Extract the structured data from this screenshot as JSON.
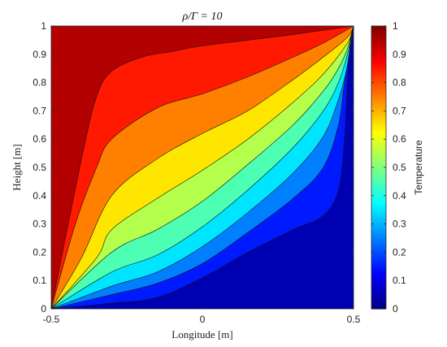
{
  "chart_data": {
    "type": "heatmap",
    "subtype": "filled-contour",
    "title": "ρ/Γ = 10",
    "xlabel": "Longitude [m]",
    "ylabel": "Height [m]",
    "colorbar_label": "Temperature",
    "xlim": [
      -0.5,
      0.5
    ],
    "ylim": [
      0,
      1
    ],
    "clim": [
      0,
      1
    ],
    "x_ticks": [
      -0.5,
      0,
      0.5
    ],
    "x_tick_labels": [
      "-0.5",
      "0",
      "0.5"
    ],
    "y_ticks": [
      0,
      0.1,
      0.2,
      0.3,
      0.4,
      0.5,
      0.6,
      0.7,
      0.8,
      0.9,
      1
    ],
    "y_tick_labels": [
      "0",
      "0.1",
      "0.2",
      "0.3",
      "0.4",
      "0.5",
      "0.6",
      "0.7",
      "0.8",
      "0.9",
      "1"
    ],
    "colorbar_ticks": [
      0,
      0.1,
      0.2,
      0.3,
      0.4,
      0.5,
      0.6,
      0.7,
      0.8,
      0.9,
      1
    ],
    "colorbar_tick_labels": [
      "0",
      "0.1",
      "0.2",
      "0.3",
      "0.4",
      "0.5",
      "0.6",
      "0.7",
      "0.8",
      "0.9",
      "1"
    ],
    "contour_levels": [
      0.1,
      0.2,
      0.3,
      0.4,
      0.5,
      0.6,
      0.7,
      0.8,
      0.9
    ],
    "colormap": "jet",
    "grid": false,
    "legend": "none",
    "boundary_conditions": {
      "left_edge": 1,
      "top_edge": 1,
      "bottom_edge": 0,
      "right_edge": 0
    },
    "contours": [
      {
        "level": 0.1,
        "points": [
          [
            -0.5,
            0
          ],
          [
            -0.3,
            0.02
          ],
          [
            -0.15,
            0.04
          ],
          [
            0,
            0.11
          ],
          [
            0.15,
            0.2
          ],
          [
            0.3,
            0.28
          ],
          [
            0.4,
            0.33
          ],
          [
            0.45,
            0.42
          ],
          [
            0.47,
            0.6
          ],
          [
            0.48,
            0.8
          ],
          [
            0.49,
            0.95
          ],
          [
            0.5,
            1
          ]
        ]
      },
      {
        "level": 0.2,
        "points": [
          [
            -0.5,
            0
          ],
          [
            -0.3,
            0.05
          ],
          [
            -0.15,
            0.09
          ],
          [
            0,
            0.16
          ],
          [
            0.15,
            0.27
          ],
          [
            0.3,
            0.39
          ],
          [
            0.4,
            0.5
          ],
          [
            0.45,
            0.65
          ],
          [
            0.47,
            0.8
          ],
          [
            0.49,
            0.93
          ],
          [
            0.5,
            1
          ]
        ]
      },
      {
        "level": 0.3,
        "points": [
          [
            -0.5,
            0
          ],
          [
            -0.3,
            0.08
          ],
          [
            -0.15,
            0.13
          ],
          [
            0,
            0.22
          ],
          [
            0.15,
            0.34
          ],
          [
            0.3,
            0.48
          ],
          [
            0.4,
            0.61
          ],
          [
            0.45,
            0.74
          ],
          [
            0.48,
            0.86
          ],
          [
            0.5,
            1
          ]
        ]
      },
      {
        "level": 0.4,
        "points": [
          [
            -0.5,
            0
          ],
          [
            -0.3,
            0.13
          ],
          [
            -0.15,
            0.19
          ],
          [
            0,
            0.29
          ],
          [
            0.15,
            0.42
          ],
          [
            0.3,
            0.57
          ],
          [
            0.4,
            0.7
          ],
          [
            0.45,
            0.8
          ],
          [
            0.48,
            0.9
          ],
          [
            0.5,
            1
          ]
        ]
      },
      {
        "level": 0.5,
        "points": [
          [
            -0.5,
            0
          ],
          [
            -0.3,
            0.2
          ],
          [
            -0.15,
            0.28
          ],
          [
            0,
            0.38
          ],
          [
            0.15,
            0.51
          ],
          [
            0.3,
            0.65
          ],
          [
            0.4,
            0.77
          ],
          [
            0.45,
            0.85
          ],
          [
            0.48,
            0.92
          ],
          [
            0.5,
            1
          ]
        ]
      },
      {
        "level": 0.6,
        "points": [
          [
            -0.5,
            0
          ],
          [
            -0.35,
            0.18
          ],
          [
            -0.3,
            0.28
          ],
          [
            -0.15,
            0.39
          ],
          [
            0,
            0.49
          ],
          [
            0.15,
            0.6
          ],
          [
            0.3,
            0.73
          ],
          [
            0.4,
            0.83
          ],
          [
            0.48,
            0.94
          ],
          [
            0.5,
            1
          ]
        ]
      },
      {
        "level": 0.7,
        "points": [
          [
            -0.5,
            0
          ],
          [
            -0.4,
            0.18
          ],
          [
            -0.3,
            0.4
          ],
          [
            -0.15,
            0.53
          ],
          [
            0,
            0.62
          ],
          [
            0.15,
            0.7
          ],
          [
            0.3,
            0.81
          ],
          [
            0.4,
            0.89
          ],
          [
            0.48,
            0.96
          ],
          [
            0.5,
            1
          ]
        ]
      },
      {
        "level": 0.8,
        "points": [
          [
            -0.5,
            0
          ],
          [
            -0.42,
            0.3
          ],
          [
            -0.35,
            0.5
          ],
          [
            -0.3,
            0.6
          ],
          [
            -0.15,
            0.71
          ],
          [
            0,
            0.76
          ],
          [
            0.15,
            0.82
          ],
          [
            0.3,
            0.89
          ],
          [
            0.4,
            0.94
          ],
          [
            0.5,
            1
          ]
        ]
      },
      {
        "level": 0.9,
        "points": [
          [
            -0.5,
            0
          ],
          [
            -0.4,
            0.53
          ],
          [
            -0.35,
            0.75
          ],
          [
            -0.3,
            0.84
          ],
          [
            -0.2,
            0.89
          ],
          [
            -0.1,
            0.91
          ],
          [
            0,
            0.93
          ],
          [
            0.15,
            0.95
          ],
          [
            0.3,
            0.97
          ],
          [
            0.5,
            1
          ]
        ]
      }
    ]
  }
}
